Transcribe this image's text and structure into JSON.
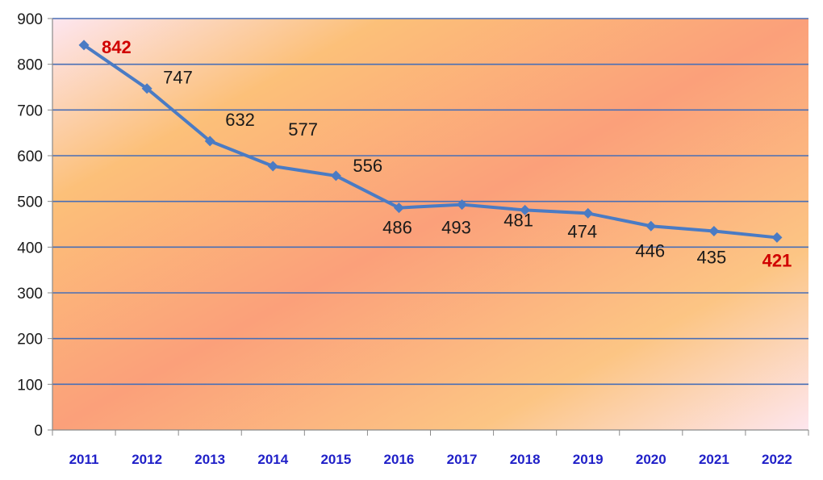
{
  "chart_data": {
    "type": "line",
    "title": "",
    "xlabel": "",
    "ylabel": "",
    "categories": [
      "2011",
      "2012",
      "2013",
      "2014",
      "2015",
      "2016",
      "2017",
      "2018",
      "2019",
      "2020",
      "2021",
      "2022"
    ],
    "series": [
      {
        "values": [
          842,
          747,
          632,
          577,
          556,
          486,
          493,
          481,
          474,
          446,
          435,
          421
        ],
        "color": "#4a7bc4"
      }
    ],
    "data_labels": [
      "842",
      "747",
      "632",
      "577",
      "556",
      "486",
      "493",
      "481",
      "474",
      "446",
      "435",
      "421"
    ],
    "highlighted_labels": [
      "842",
      "421"
    ],
    "highlight_color": "#d00000",
    "ylim": [
      0,
      900
    ],
    "yticks": [
      "0",
      "100",
      "200",
      "300",
      "400",
      "500",
      "600",
      "700",
      "800",
      "900"
    ],
    "grid": true,
    "grid_color": "#4a6fb5",
    "xtick_color": "#2020c8",
    "legend": "none"
  }
}
